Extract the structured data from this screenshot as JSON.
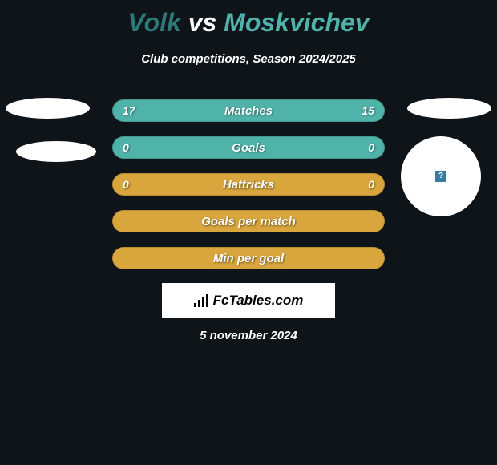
{
  "background_color": "#0f1419",
  "title": {
    "player1": "Volk",
    "vs": "vs",
    "player2": "Moskvichev",
    "player1_color": "#2b7a78",
    "player2_color": "#4fb3a9",
    "vs_color": "#ffffff",
    "fontsize": 32
  },
  "subtitle": "Club competitions, Season 2024/2025",
  "rows": [
    {
      "label": "Matches",
      "left": "17",
      "right": "15",
      "bg": "#4fb3a9"
    },
    {
      "label": "Goals",
      "left": "0",
      "right": "0",
      "bg": "#4fb3a9"
    },
    {
      "label": "Hattricks",
      "left": "0",
      "right": "0",
      "bg": "#d9a63e"
    },
    {
      "label": "Goals per match",
      "left": "",
      "right": "",
      "bg": "#d9a63e"
    },
    {
      "label": "Min per goal",
      "left": "",
      "right": "",
      "bg": "#d9a63e"
    }
  ],
  "row_style": {
    "height": 28,
    "radius": 14,
    "gap": 18,
    "label_color": "#ffffff",
    "label_fontsize": 15,
    "value_fontsize": 14
  },
  "decorations": {
    "ellipse_color": "#ffffff",
    "badge_text": "?",
    "badge_bg": "#3a7a9e"
  },
  "footer": {
    "brand": "FcTables.com",
    "bg": "#ffffff"
  },
  "date": "5 november 2024"
}
